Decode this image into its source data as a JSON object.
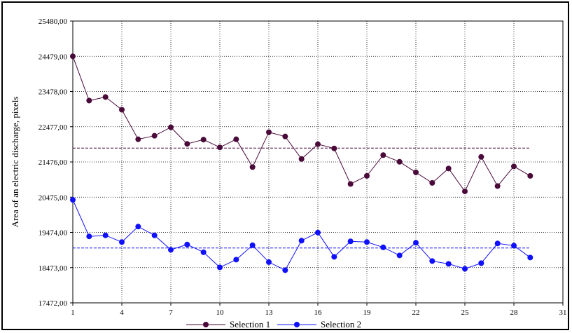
{
  "chart_data": {
    "type": "line",
    "title": "",
    "xlabel": "",
    "ylabel": "Area of an electric discharge, pixels",
    "xlim": [
      1,
      31
    ],
    "ylim": [
      17472,
      25480
    ],
    "x_ticks": [
      "1",
      "4",
      "7",
      "10",
      "13",
      "16",
      "19",
      "22",
      "25",
      "28",
      "31"
    ],
    "y_ticks": [
      "17472,00",
      "18473,00",
      "19474,00",
      "20475,00",
      "21476,00",
      "22477,00",
      "23478,00",
      "24479,00",
      "25480,00"
    ],
    "grid": true,
    "legend_position": "bottom-center",
    "x": [
      1,
      2,
      3,
      4,
      5,
      6,
      7,
      8,
      9,
      10,
      11,
      12,
      13,
      14,
      15,
      16,
      17,
      18,
      19,
      20,
      21,
      22,
      23,
      24,
      25,
      26,
      27,
      28,
      29
    ],
    "series": [
      {
        "name": "Selection 1",
        "color": "#4a0a3a",
        "values": [
          24479,
          23220,
          23320,
          22960,
          22120,
          22220,
          22460,
          21990,
          22110,
          21890,
          22120,
          21330,
          22320,
          22200,
          21560,
          21980,
          21860,
          20850,
          21080,
          21670,
          21480,
          21180,
          20880,
          21290,
          20640,
          21620,
          20790,
          21350,
          21080
        ],
        "mean": 21870
      },
      {
        "name": "Selection 2",
        "color": "#1010ff",
        "values": [
          20400,
          19360,
          19390,
          19200,
          19640,
          19390,
          18980,
          19130,
          18910,
          18480,
          18700,
          19110,
          18630,
          18400,
          19240,
          19470,
          18780,
          19220,
          19200,
          19050,
          18820,
          19180,
          18660,
          18580,
          18440,
          18600,
          19160,
          19100,
          18760
        ],
        "mean": 19030
      }
    ]
  }
}
